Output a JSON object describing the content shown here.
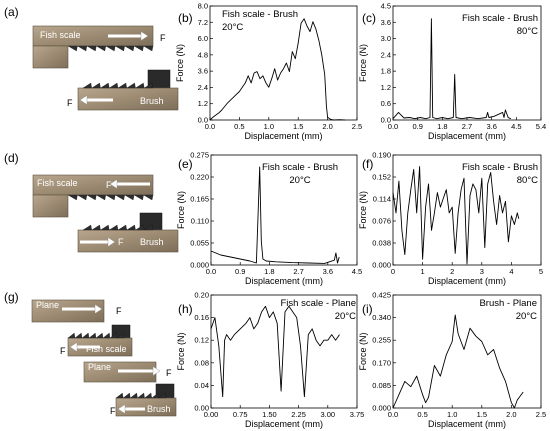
{
  "chart_data": [
    {
      "id": "a",
      "type": "diagram",
      "panel_label": "(a)",
      "labels": {
        "top": "Fish scale",
        "top_force": "F",
        "bottom": "Brush",
        "bottom_force": "F"
      }
    },
    {
      "id": "b",
      "type": "line",
      "panel_label": "(b)",
      "title": "Fish scale - Brush",
      "subtitle": "20°C",
      "xlabel": "Displacement (mm)",
      "ylabel": "Force (N)",
      "xlim": [
        0.0,
        2.5
      ],
      "ylim": [
        0.0,
        8.0
      ],
      "xticks": [
        "0.0",
        "0.5",
        "1.0",
        "1.5",
        "2.0",
        "2.5"
      ],
      "yticks": [
        "0.0",
        "1.2",
        "2.4",
        "3.6",
        "4.8",
        "6.0",
        "7.2",
        "8.0"
      ],
      "series": [
        {
          "x": [
            0.0,
            0.05,
            0.15,
            0.2,
            0.3,
            0.4,
            0.5,
            0.6,
            0.65,
            0.7,
            0.75,
            0.8,
            0.85,
            0.9,
            0.95,
            1.0,
            1.05,
            1.1,
            1.15,
            1.2,
            1.25,
            1.3,
            1.35,
            1.4,
            1.45,
            1.5,
            1.55,
            1.6,
            1.65,
            1.7,
            1.75,
            1.8,
            1.85,
            1.9,
            1.95,
            1.98,
            2.0,
            2.05,
            2.1,
            2.2,
            2.3
          ],
          "y": [
            0.0,
            0.2,
            0.5,
            0.7,
            1.2,
            1.6,
            2.0,
            2.6,
            3.1,
            2.6,
            3.3,
            3.4,
            2.9,
            3.1,
            2.6,
            2.3,
            2.9,
            3.6,
            2.8,
            3.3,
            3.6,
            4.0,
            3.4,
            4.8,
            4.3,
            5.4,
            6.8,
            7.1,
            6.6,
            6.2,
            6.9,
            6.4,
            5.6,
            4.6,
            3.2,
            1.0,
            0.2,
            0.05,
            0.0,
            0.02,
            0.0
          ]
        }
      ]
    },
    {
      "id": "c",
      "type": "line",
      "panel_label": "(c)",
      "title": "Fish scale - Brush",
      "subtitle": "80°C",
      "xlabel": "Displacement (mm)",
      "ylabel": "Force (N)",
      "xlim": [
        0.0,
        5.4
      ],
      "ylim": [
        0.0,
        4.5
      ],
      "xticks": [
        "0.0",
        "0.9",
        "1.8",
        "2.7",
        "3.6",
        "4.5",
        "5.4"
      ],
      "yticks": [
        "0.0",
        "0.6",
        "1.2",
        "1.8",
        "2.4",
        "3.0",
        "3.6",
        "4.5"
      ],
      "series": [
        {
          "x": [
            0.0,
            0.2,
            0.4,
            0.6,
            0.8,
            1.0,
            1.2,
            1.35,
            1.4,
            1.45,
            1.6,
            1.8,
            2.0,
            2.2,
            2.25,
            2.3,
            2.5,
            2.8,
            3.1,
            3.4,
            3.45,
            3.5,
            3.7,
            3.9,
            4.0,
            4.05,
            4.1,
            4.2,
            4.3
          ],
          "y": [
            0.05,
            0.3,
            0.08,
            0.1,
            0.05,
            0.1,
            0.05,
            0.1,
            4.0,
            0.1,
            0.05,
            0.1,
            0.05,
            0.1,
            1.8,
            0.1,
            0.05,
            0.1,
            0.05,
            0.1,
            0.3,
            0.1,
            0.15,
            0.25,
            0.3,
            0.1,
            0.4,
            0.1,
            0.05
          ]
        }
      ]
    },
    {
      "id": "d",
      "type": "diagram",
      "panel_label": "(d)",
      "labels": {
        "top": "Fish scale",
        "top_force": "F",
        "bottom": "Brush",
        "bottom_force": "F"
      }
    },
    {
      "id": "e",
      "type": "line",
      "panel_label": "(e)",
      "title": "Fish scale - Brush",
      "subtitle": "20°C",
      "xlabel": "Displacement (mm)",
      "ylabel": "Force (N)",
      "xlim": [
        0.0,
        4.5
      ],
      "ylim": [
        0.0,
        0.275
      ],
      "xticks": [
        "0.0",
        "0.9",
        "1.8",
        "2.7",
        "3.6",
        "4.5"
      ],
      "yticks": [
        "0.000",
        "0.055",
        "0.110",
        "0.165",
        "0.220",
        "0.275"
      ],
      "series": [
        {
          "x": [
            0.0,
            0.3,
            0.6,
            0.9,
            1.2,
            1.4,
            1.5,
            1.55,
            1.6,
            1.7,
            2.0,
            2.5,
            3.0,
            3.5,
            3.8,
            3.85,
            3.9,
            3.95
          ],
          "y": [
            0.035,
            0.025,
            0.02,
            0.015,
            0.01,
            0.005,
            0.245,
            0.06,
            0.015,
            0.01,
            0.008,
            0.006,
            0.005,
            0.004,
            0.012,
            0.03,
            0.005,
            0.02
          ]
        }
      ]
    },
    {
      "id": "f",
      "type": "line",
      "panel_label": "(f)",
      "title": "Fish scale - Brush",
      "subtitle": "80°C",
      "xlabel": "Displacement (mm)",
      "ylabel": "Force (N)",
      "xlim": [
        0,
        5
      ],
      "ylim": [
        0.0,
        0.19
      ],
      "xticks": [
        "0",
        "1",
        "2",
        "3",
        "4",
        "5"
      ],
      "yticks": [
        "0.000",
        "0.038",
        "0.076",
        "0.114",
        "0.152",
        "0.190"
      ],
      "series": [
        {
          "x": [
            0.0,
            0.1,
            0.2,
            0.3,
            0.4,
            0.5,
            0.6,
            0.7,
            0.8,
            0.9,
            1.0,
            1.1,
            1.2,
            1.3,
            1.4,
            1.5,
            1.6,
            1.7,
            1.8,
            1.9,
            2.0,
            2.1,
            2.2,
            2.3,
            2.4,
            2.5,
            2.6,
            2.7,
            2.8,
            2.9,
            3.0,
            3.1,
            3.2,
            3.3,
            3.4,
            3.5,
            3.6,
            3.7,
            3.8,
            3.9,
            4.0,
            4.1,
            4.2,
            4.25
          ],
          "y": [
            0.125,
            0.09,
            0.145,
            0.06,
            0.018,
            0.09,
            0.13,
            0.165,
            0.09,
            0.17,
            0.01,
            0.1,
            0.14,
            0.06,
            0.09,
            0.125,
            0.1,
            0.115,
            0.13,
            0.09,
            0.1,
            0.02,
            0.09,
            0.13,
            0.15,
            0.002,
            0.12,
            0.14,
            0.13,
            0.09,
            0.15,
            0.03,
            0.14,
            0.16,
            0.11,
            0.07,
            0.12,
            0.09,
            0.11,
            0.04,
            0.085,
            0.07,
            0.09,
            0.08
          ]
        }
      ]
    },
    {
      "id": "g",
      "type": "diagram",
      "panel_label": "(g)",
      "labels": {
        "top1": "Plane",
        "force1": "F",
        "mid1": "Fish scale",
        "force2": "F",
        "top2": "Plane",
        "force3": "F",
        "mid2": "Brush",
        "force4": "F"
      }
    },
    {
      "id": "h",
      "type": "line",
      "panel_label": "(h)",
      "title": "Fish scale - Plane",
      "subtitle": "20°C",
      "xlabel": "Displacement (mm)",
      "ylabel": "Force (N)",
      "xlim": [
        0.0,
        3.75
      ],
      "ylim": [
        0.0,
        0.2
      ],
      "xticks": [
        "0.00",
        "0.75",
        "1.50",
        "2.25",
        "3.00",
        "3.75"
      ],
      "yticks": [
        "0.00",
        "0.04",
        "0.08",
        "0.12",
        "0.16",
        "0.20"
      ],
      "series": [
        {
          "x": [
            0.0,
            0.1,
            0.2,
            0.3,
            0.35,
            0.4,
            0.5,
            0.6,
            0.75,
            0.9,
            1.0,
            1.1,
            1.2,
            1.3,
            1.4,
            1.5,
            1.6,
            1.7,
            1.8,
            1.9,
            2.0,
            2.1,
            2.2,
            2.3,
            2.4,
            2.5,
            2.6,
            2.7,
            2.8,
            2.9,
            3.0,
            3.1,
            3.2,
            3.3
          ],
          "y": [
            0.14,
            0.16,
            0.11,
            0.02,
            0.12,
            0.13,
            0.12,
            0.13,
            0.14,
            0.15,
            0.16,
            0.14,
            0.15,
            0.17,
            0.18,
            0.16,
            0.17,
            0.15,
            0.03,
            0.17,
            0.18,
            0.17,
            0.16,
            0.11,
            0.02,
            0.13,
            0.14,
            0.12,
            0.11,
            0.12,
            0.12,
            0.13,
            0.12,
            0.13
          ]
        }
      ]
    },
    {
      "id": "i",
      "type": "line",
      "panel_label": "(i)",
      "title": "Brush - Plane",
      "subtitle": "20°C",
      "xlabel": "Displacement (mm)",
      "ylabel": "Force (N)",
      "xlim": [
        0.0,
        2.5
      ],
      "ylim": [
        0.0,
        0.425
      ],
      "xticks": [
        "0.0",
        "0.5",
        "1.0",
        "1.5",
        "2.0",
        "2.5"
      ],
      "yticks": [
        "0.000",
        "0.085",
        "0.170",
        "0.255",
        "0.340",
        "0.425"
      ],
      "series": [
        {
          "x": [
            0.0,
            0.1,
            0.2,
            0.3,
            0.4,
            0.5,
            0.55,
            0.6,
            0.7,
            0.8,
            0.9,
            1.0,
            1.05,
            1.1,
            1.2,
            1.3,
            1.4,
            1.5,
            1.6,
            1.7,
            1.8,
            1.9,
            2.0,
            2.05,
            2.1,
            2.2
          ],
          "y": [
            0.0,
            0.05,
            0.1,
            0.08,
            0.12,
            0.05,
            0.02,
            0.04,
            0.16,
            0.12,
            0.2,
            0.25,
            0.35,
            0.28,
            0.22,
            0.3,
            0.27,
            0.25,
            0.2,
            0.22,
            0.15,
            0.1,
            0.02,
            0.0,
            0.03,
            0.06
          ]
        }
      ]
    }
  ]
}
